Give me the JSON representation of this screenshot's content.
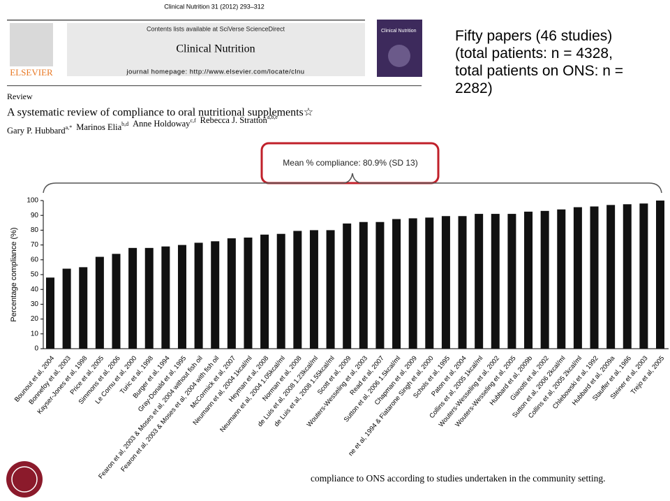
{
  "journal": {
    "citation": "Clinical Nutrition 31 (2012) 293–312",
    "contents": "Contents lists available at SciVerse ScienceDirect",
    "name": "Clinical Nutrition",
    "homepage": "journal homepage: http://www.elsevier.com/locate/clnu",
    "publisher": "ELSEVIER",
    "cover_title": "Clinical Nutrition"
  },
  "article": {
    "section": "Review",
    "title": "A systematic review of compliance to oral nutritional supplements☆",
    "authors": [
      {
        "name": "Gary P. Hubbard",
        "sup": "a,*"
      },
      {
        "name": "Marinos Elia",
        "sup": "b,d"
      },
      {
        "name": "Anne Holdoway",
        "sup": "c,f"
      },
      {
        "name": "Rebecca J. Stratton",
        "sup": "a,b,e"
      }
    ]
  },
  "summary": {
    "lines": [
      "Fifty papers (46 studies)",
      "(total patients: n = 4328,",
      "total patients on ONS: n =",
      "2282)"
    ]
  },
  "mean_note": "Mean % compliance: 80.9% (SD 13)",
  "caption": "compliance to ONS according to studies undertaken in the community setting.",
  "chart_data": {
    "type": "bar",
    "y_label": "Percentage compliance (%)",
    "color": "#111111",
    "categories": [
      "Bounout et al, 2004",
      "Bonnefoy et al, 2003",
      "Kayser-Jones et al, 1998",
      "Price et al, 2005",
      "Simmons et al, 2006",
      "Le Cornu et al, 2000",
      "Turic et al, 1998",
      "Burger et al, 1994",
      "Gray-Donald et al, 1995",
      "Fearon et al, 2003 & Moses et al, 2004 without fish oil",
      "Fearon et al, 2003 & Moses et al, 2004 with fish oil",
      "McCormick et al, 2007",
      "Neumann et al, 2004 1kcal/ml",
      "Heyman et al, 2008",
      "Neumann et al, 2004 1.05kcal/ml",
      "Norman et al, 2008",
      "de Luis et al, 2008 1.23kcal/ml",
      "de Luis et al, 2008 1.55kcal/ml",
      "Scott et al, 2009",
      "Wouters-Wesseling et al, 2003",
      "Read et al, 2007",
      "Sutton et al, 2006 1.5kcal/ml",
      "Chapman et al, 2009",
      "ne et al, 1994 & Fiatarone Singh et al, 2000",
      "Schols et al, 1995",
      "Paton et al, 2004",
      "Collins et al, 2005 1kcal/ml",
      "Wouters-Wesseling et al, 2002",
      "Wouters-Wesseling et al, 2005",
      "Hubbard et al, 2009b",
      "Gianotti et al, 2002",
      "Sutton et al, 2006 2kcal/ml",
      "Collins et al, 2005 2kcal/ml",
      "Chlebowski et al, 1992",
      "Hubbard et al, 2009a",
      "Stauffer et al, 1986",
      "Steiner et al, 2003",
      "Trejo et al, 2005"
    ],
    "values": [
      48,
      54,
      55,
      62,
      64,
      68,
      68,
      69,
      70,
      71.5,
      72.5,
      74.5,
      75,
      77,
      77.5,
      79.5,
      80,
      80,
      84.5,
      85.5,
      85.5,
      87.5,
      88,
      88.5,
      89.5,
      89.5,
      91,
      91,
      91,
      92.5,
      93,
      94,
      95.5,
      96,
      97,
      97.5,
      98,
      100
    ],
    "ylim": [
      0,
      100
    ],
    "yticks": [
      0,
      10,
      20,
      30,
      40,
      50,
      60,
      70,
      80,
      90,
      100
    ]
  }
}
